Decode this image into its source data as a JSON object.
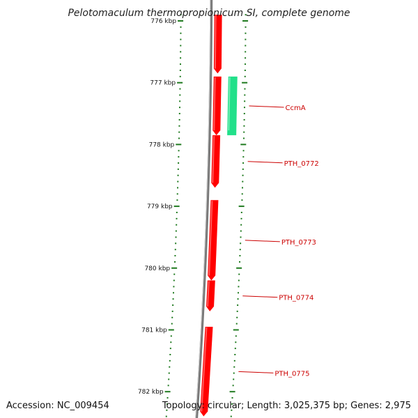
{
  "title": "Pelotomaculum thermopropionicum SI, complete genome",
  "accession": "Accession: NC_009454",
  "topology": "Topology: circular; Length: 3,025,375 bp; Genes: 2,975",
  "colors": {
    "backbone": "#7a7a7a",
    "forward_gene": "#ff0000",
    "reverse_gene": "#22e08a",
    "tick": "#1f7a1f",
    "gene_label": "#cc0000",
    "leader": "#cc0000"
  },
  "ruler": {
    "labels": [
      "776 kbp",
      "777 kbp",
      "778 kbp",
      "779 kbp",
      "780 kbp",
      "781 kbp",
      "782 kbp"
    ]
  },
  "genes": [
    {
      "name": "",
      "strand": "+",
      "start_kbp": 775.9,
      "end_kbp": 776.85
    },
    {
      "name": "CcmA",
      "strand": "-",
      "start_kbp": 776.9,
      "end_kbp": 777.85
    },
    {
      "name": "",
      "strand": "+",
      "start_kbp": 776.9,
      "end_kbp": 777.85
    },
    {
      "name": "PTH_0772",
      "strand": "+",
      "start_kbp": 777.85,
      "end_kbp": 778.7
    },
    {
      "name": "PTH_0773",
      "strand": "+",
      "start_kbp": 778.9,
      "end_kbp": 780.2
    },
    {
      "name": "PTH_0774",
      "strand": "+",
      "start_kbp": 780.2,
      "end_kbp": 780.7
    },
    {
      "name": "PTH_0775",
      "strand": "+",
      "start_kbp": 780.95,
      "end_kbp": 782.4
    }
  ],
  "gene_labels": [
    "CcmA",
    "PTH_0772",
    "PTH_0773",
    "PTH_0774",
    "PTH_0775"
  ]
}
